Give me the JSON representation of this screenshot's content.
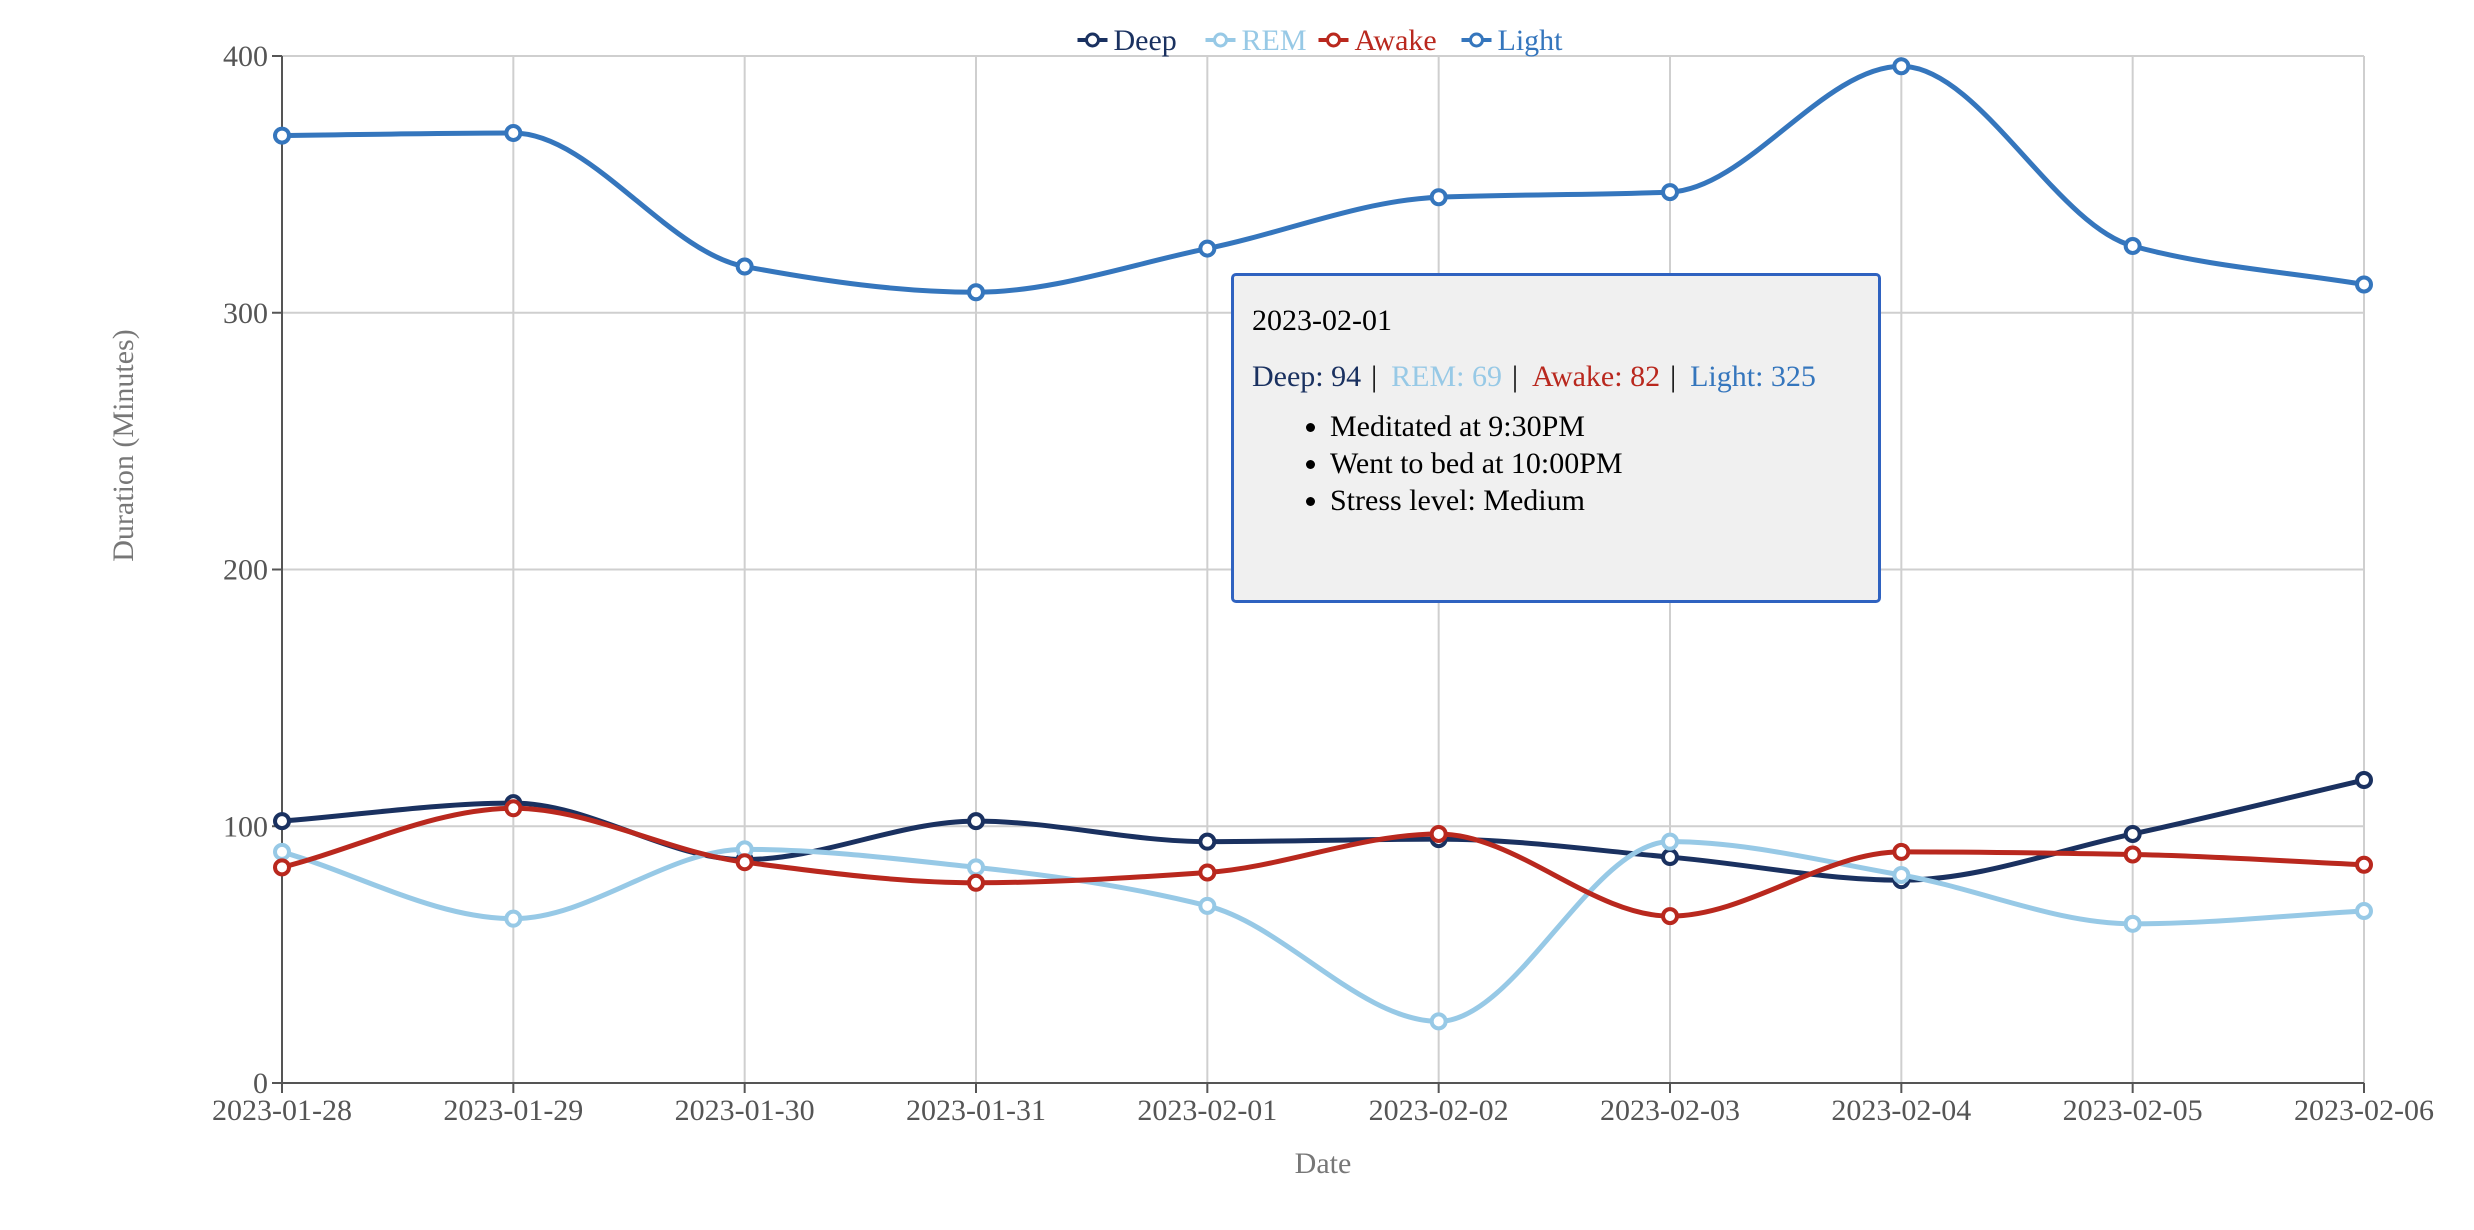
{
  "chart_data": {
    "type": "line",
    "title": "",
    "xlabel": "Date",
    "ylabel": "Duration (Minutes)",
    "x": [
      "2023-01-28",
      "2023-01-29",
      "2023-01-30",
      "2023-01-31",
      "2023-02-01",
      "2023-02-02",
      "2023-02-03",
      "2023-02-04",
      "2023-02-05",
      "2023-02-06"
    ],
    "ylim": [
      0,
      400
    ],
    "yticks": [
      0,
      100,
      200,
      300,
      400
    ],
    "grid": true,
    "legend_position": "top-center",
    "series": [
      {
        "name": "Deep",
        "color": "#1a3160",
        "values": [
          102,
          109,
          87,
          102,
          94,
          95,
          88,
          79,
          97,
          118
        ]
      },
      {
        "name": "REM",
        "color": "#97c9e6",
        "values": [
          90,
          64,
          91,
          84,
          69,
          24,
          94,
          81,
          62,
          67
        ]
      },
      {
        "name": "Awake",
        "color": "#b9281e",
        "values": [
          84,
          107,
          86,
          78,
          82,
          97,
          65,
          90,
          89,
          85
        ]
      },
      {
        "name": "Light",
        "color": "#3576bd",
        "values": [
          369,
          370,
          318,
          308,
          325,
          345,
          347,
          396,
          326,
          311
        ]
      }
    ]
  },
  "tooltip": {
    "date": "2023-02-01",
    "values": [
      {
        "label": "Deep: 94",
        "color": "#1a3160"
      },
      {
        "label": "REM: 69",
        "color": "#97c9e6"
      },
      {
        "label": "Awake: 82",
        "color": "#b9281e"
      },
      {
        "label": "Light: 325",
        "color": "#3576bd"
      }
    ],
    "separator": "|",
    "notes": [
      "Meditated at 9:30PM",
      "Went to bed at 10:00PM",
      "Stress level: Medium"
    ]
  }
}
